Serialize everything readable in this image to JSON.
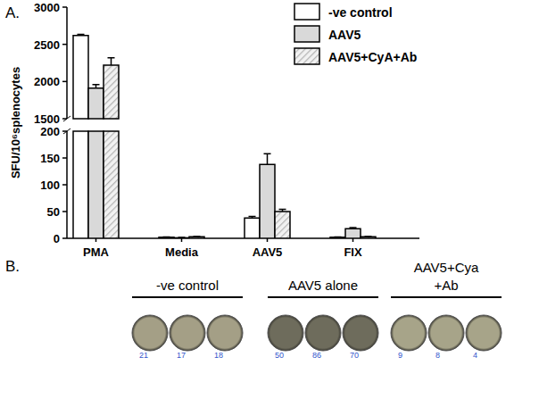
{
  "chart_data": {
    "type": "bar",
    "panel_label": "A.",
    "y_label": "SFU/10⁶splenocytes",
    "categories": [
      "PMA",
      "Media",
      "AAV5",
      "FIX"
    ],
    "series": [
      {
        "name": "-ve control",
        "color": "#ffffff",
        "values": [
          2620,
          2,
          38,
          2
        ],
        "errors": [
          15,
          0.5,
          3,
          0.5
        ]
      },
      {
        "name": "AAV5",
        "color": "#d9d9d9",
        "values": [
          1910,
          1,
          138,
          18
        ],
        "errors": [
          50,
          0.5,
          20,
          2
        ]
      },
      {
        "name": "AAV5+CyA+Ab",
        "color": "#cfcfcf",
        "line_style": "hatched",
        "values": [
          2220,
          3,
          50,
          3
        ],
        "errors": [
          100,
          0.5,
          4,
          0.5
        ]
      }
    ],
    "ylim": [
      0,
      3000
    ],
    "y_break": [
      200,
      1500
    ],
    "yticks": [
      0,
      50,
      100,
      150,
      200,
      1500,
      2000,
      2500,
      3000
    ],
    "grid": false,
    "legend": "top-right"
  },
  "panel_b": {
    "panel_label": "B.",
    "groups": [
      {
        "label_lines": [
          "-ve control"
        ],
        "counts": [
          21,
          17,
          18
        ]
      },
      {
        "label_lines": [
          "AAV5 alone"
        ],
        "counts": [
          50,
          86,
          70
        ]
      },
      {
        "label_lines": [
          "AAV5+Cya",
          "+Ab"
        ],
        "counts": [
          9,
          8,
          4
        ]
      }
    ]
  }
}
